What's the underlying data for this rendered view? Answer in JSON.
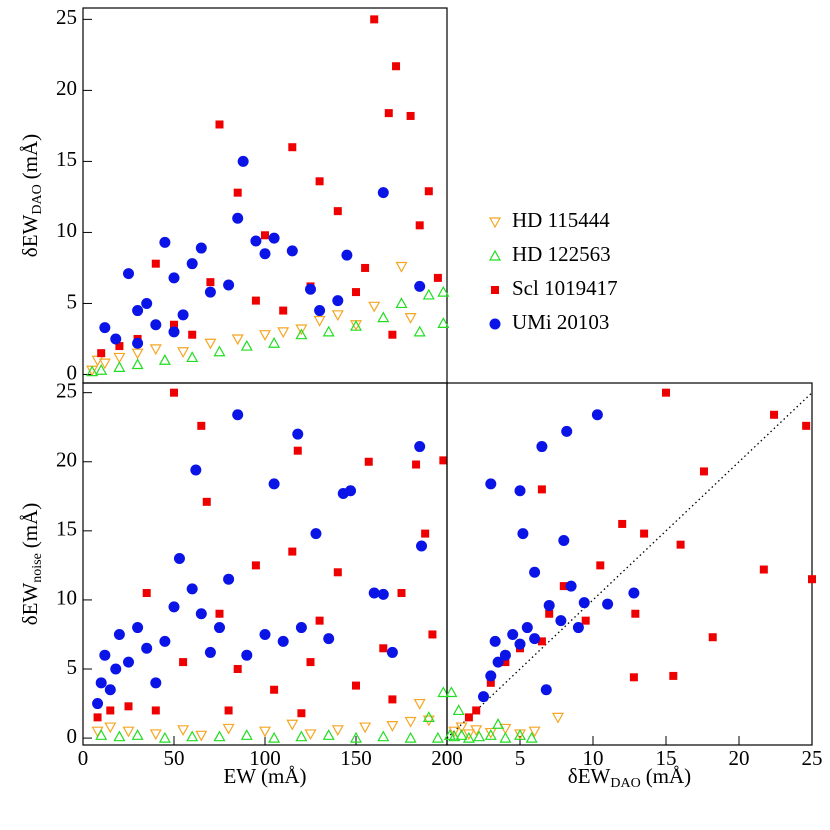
{
  "chart_data": [
    {
      "type": "scatter",
      "ylabel": {
        "text": "δEW",
        "sub": "DAO",
        "unit": "(mÅ)"
      },
      "xlim": [
        0,
        200
      ],
      "ylim": [
        -0.6,
        25.8
      ],
      "yticks": [
        0,
        5,
        10,
        15,
        20,
        25
      ],
      "series": [
        {
          "name": "HD 115444",
          "color": "#f5a623",
          "marker": "triangle-down",
          "x": [
            5,
            8,
            12,
            20,
            30,
            40,
            55,
            70,
            85,
            100,
            110,
            120,
            130,
            140,
            150,
            160,
            175,
            180
          ],
          "values": [
            0.3,
            1.0,
            0.8,
            1.2,
            1.5,
            1.8,
            1.6,
            2.2,
            2.5,
            2.8,
            3.0,
            3.2,
            3.8,
            4.2,
            3.5,
            4.8,
            7.6,
            4.0
          ]
        },
        {
          "name": "HD 122563",
          "color": "#22dd22",
          "marker": "triangle-up",
          "x": [
            5,
            10,
            20,
            30,
            45,
            60,
            75,
            90,
            105,
            120,
            135,
            150,
            165,
            175,
            190,
            198,
            198,
            185
          ],
          "values": [
            0.2,
            0.3,
            0.5,
            0.7,
            1.0,
            1.2,
            1.6,
            2.0,
            2.2,
            2.8,
            3.0,
            3.4,
            4.0,
            5.0,
            5.6,
            5.8,
            3.6,
            3.0
          ]
        },
        {
          "name": "Scl 1019417",
          "color": "#ee0000",
          "marker": "square",
          "x": [
            10,
            20,
            30,
            40,
            50,
            60,
            70,
            75,
            85,
            95,
            100,
            110,
            115,
            125,
            130,
            140,
            150,
            155,
            160,
            168,
            172,
            180,
            190,
            195,
            185,
            170
          ],
          "values": [
            1.5,
            2.0,
            2.5,
            7.8,
            3.5,
            2.8,
            6.5,
            17.6,
            12.8,
            5.2,
            9.8,
            4.5,
            16.0,
            6.2,
            13.6,
            11.5,
            5.8,
            7.5,
            25,
            18.4,
            21.7,
            18.2,
            12.9,
            6.8,
            10.5,
            2.8
          ]
        },
        {
          "name": "UMi 20103",
          "color": "#0a14e6",
          "marker": "circle",
          "x": [
            12,
            18,
            25,
            30,
            35,
            40,
            45,
            50,
            55,
            60,
            65,
            70,
            80,
            85,
            88,
            95,
            100,
            105,
            115,
            125,
            130,
            140,
            145,
            165,
            185,
            50,
            30
          ],
          "values": [
            3.3,
            2.5,
            7.1,
            4.5,
            5.0,
            3.5,
            9.3,
            6.8,
            4.2,
            7.8,
            8.9,
            5.8,
            6.3,
            11.0,
            15.0,
            9.4,
            8.5,
            9.6,
            8.7,
            6.0,
            4.5,
            5.2,
            8.4,
            12.8,
            6.2,
            3.0,
            2.2
          ]
        }
      ]
    },
    {
      "type": "scatter",
      "xlabel": "EW (mÅ)",
      "ylabel": {
        "text": "δEW",
        "sub": "noise",
        "unit": "(mÅ)"
      },
      "xlim": [
        0,
        200
      ],
      "ylim": [
        -0.5,
        25.7
      ],
      "xticks": [
        0,
        50,
        100,
        150,
        200
      ],
      "yticks": [
        0,
        5,
        10,
        15,
        20,
        25
      ],
      "series": [
        {
          "color": "#f5a623",
          "marker": "triangle-down",
          "x": [
            8,
            15,
            25,
            40,
            55,
            65,
            80,
            100,
            115,
            125,
            140,
            155,
            170,
            180,
            185,
            190
          ],
          "values": [
            0.5,
            0.8,
            0.5,
            0.3,
            0.6,
            0.2,
            0.7,
            0.5,
            1.0,
            0.3,
            0.6,
            0.8,
            0.9,
            1.2,
            2.5,
            1.3
          ]
        },
        {
          "color": "#22dd22",
          "marker": "triangle-up",
          "x": [
            10,
            20,
            30,
            45,
            60,
            75,
            90,
            105,
            120,
            135,
            150,
            165,
            180,
            195,
            198,
            190
          ],
          "values": [
            0.2,
            0.1,
            0.2,
            0.0,
            0.1,
            0.1,
            0.2,
            0.0,
            0.1,
            0.2,
            0.0,
            0.1,
            0.0,
            0.0,
            3.3,
            1.5
          ]
        },
        {
          "color": "#ee0000",
          "marker": "square",
          "x": [
            8,
            15,
            25,
            35,
            40,
            50,
            55,
            65,
            68,
            75,
            85,
            95,
            105,
            115,
            118,
            125,
            130,
            140,
            150,
            157,
            165,
            175,
            183,
            188,
            192,
            198,
            170,
            80,
            120
          ],
          "values": [
            1.5,
            2.0,
            2.3,
            10.5,
            2.0,
            25,
            5.5,
            22.6,
            17.1,
            9.0,
            5.0,
            12.5,
            3.5,
            13.5,
            20.8,
            5.5,
            8.5,
            12.0,
            3.8,
            20.0,
            6.5,
            10.5,
            19.8,
            14.8,
            7.5,
            20.1,
            2.8,
            2.0,
            1.8
          ]
        },
        {
          "color": "#0a14e6",
          "marker": "circle",
          "x": [
            8,
            10,
            12,
            15,
            18,
            20,
            25,
            30,
            35,
            40,
            45,
            50,
            53,
            60,
            62,
            65,
            70,
            75,
            80,
            85,
            90,
            100,
            105,
            110,
            118,
            120,
            128,
            135,
            143,
            147,
            160,
            165,
            185,
            186,
            170
          ],
          "values": [
            2.5,
            4.0,
            6.0,
            3.5,
            5.0,
            7.5,
            5.5,
            8.0,
            6.5,
            4.0,
            7.0,
            9.5,
            13.0,
            10.8,
            19.4,
            9.0,
            6.2,
            8.0,
            11.5,
            23.4,
            6.0,
            7.5,
            18.4,
            7.0,
            22.0,
            8.0,
            14.8,
            7.2,
            17.7,
            17.9,
            10.5,
            10.4,
            21.1,
            13.9,
            6.2
          ]
        }
      ]
    },
    {
      "type": "scatter",
      "xlabel": {
        "text": "δEW",
        "sub": "DAO",
        "unit": "(mÅ)"
      },
      "xlim": [
        0,
        25
      ],
      "ylim": [
        -0.5,
        25.7
      ],
      "xticks": [
        0,
        5,
        10,
        15,
        20,
        25
      ],
      "series": [
        {
          "color": "#f5a623",
          "marker": "triangle-down",
          "x": [
            0.5,
            1.0,
            1.5,
            2.0,
            3.0,
            4.0,
            5.0,
            6.0,
            7.6
          ],
          "values": [
            0.5,
            0.8,
            0.3,
            0.6,
            0.4,
            0.7,
            0.3,
            0.5,
            1.5
          ]
        },
        {
          "color": "#22dd22",
          "marker": "triangle-up",
          "x": [
            0.2,
            0.3,
            0.5,
            1.0,
            1.5,
            2.2,
            3.0,
            4.0,
            5.0,
            5.8,
            3.5,
            0.8
          ],
          "values": [
            0.2,
            3.3,
            0.1,
            0.2,
            0.0,
            0.1,
            0.2,
            0.0,
            0.2,
            0.0,
            1.0,
            2.0
          ]
        },
        {
          "color": "#ee0000",
          "marker": "square",
          "x": [
            1.5,
            2.0,
            2.5,
            3.0,
            4.0,
            5.0,
            6.5,
            7.0,
            8.0,
            9.5,
            10.5,
            12.0,
            12.8,
            13.5,
            15.5,
            16.0,
            17.6,
            18.2,
            21.7,
            22.4,
            24.6,
            25,
            15,
            12.9,
            6.5
          ],
          "values": [
            1.5,
            2.0,
            3.0,
            4.0,
            5.5,
            6.5,
            7.0,
            9.0,
            11.0,
            8.5,
            12.5,
            15.5,
            4.4,
            14.8,
            4.5,
            14.0,
            19.3,
            7.3,
            12.2,
            23.4,
            22.6,
            11.5,
            25,
            9.0,
            18.0
          ]
        },
        {
          "color": "#0a14e6",
          "marker": "circle",
          "x": [
            2.5,
            3.0,
            3.3,
            3.5,
            3.0,
            4.0,
            4.5,
            5.0,
            5.2,
            5.5,
            6.0,
            6.5,
            6.8,
            7.0,
            7.8,
            8.2,
            8.5,
            9.0,
            9.4,
            10.3,
            11.0,
            12.8,
            5.0,
            6.0,
            8.0
          ],
          "values": [
            3.0,
            4.5,
            7.0,
            5.5,
            18.4,
            6.0,
            7.5,
            6.8,
            14.8,
            8.0,
            7.2,
            21.1,
            3.5,
            9.6,
            8.5,
            22.2,
            11.0,
            8.0,
            9.8,
            23.4,
            9.7,
            10.5,
            17.9,
            12.0,
            14.3
          ]
        }
      ]
    }
  ]
}
